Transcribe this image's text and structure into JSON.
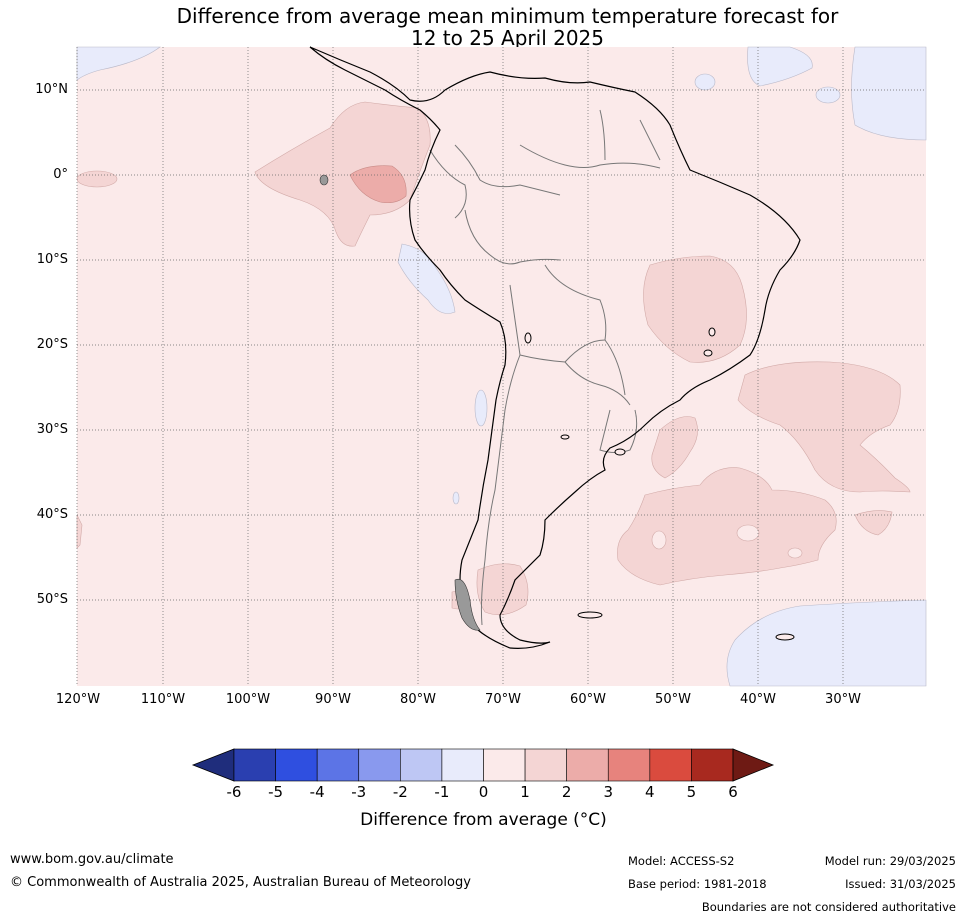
{
  "title": {
    "line1": "Difference from average mean minimum temperature forecast for",
    "line2": "12 to 25 April 2025"
  },
  "lat_labels": [
    "10°N",
    "0°",
    "10°S",
    "20°S",
    "30°S",
    "40°S",
    "50°S"
  ],
  "lon_labels": [
    "120°W",
    "110°W",
    "100°W",
    "90°W",
    "80°W",
    "70°W",
    "60°W",
    "50°W",
    "40°W",
    "30°W"
  ],
  "colorbar": {
    "labels": [
      "-6",
      "-5",
      "-4",
      "-3",
      "-2",
      "-1",
      "0",
      "1",
      "2",
      "3",
      "4",
      "5",
      "6"
    ],
    "colors": [
      "#1f2d7c",
      "#2a3fb0",
      "#2f4fe0",
      "#5c74e6",
      "#8999ee",
      "#bec7f4",
      "#e8ebfb",
      "#fbeaea",
      "#f4d5d4",
      "#ecaca9",
      "#e7837d",
      "#da4b3e",
      "#a8291f",
      "#6e1a14"
    ],
    "title": "Difference from average (°C)"
  },
  "footer": {
    "website": "www.bom.gov.au/climate",
    "copyright": "© Commonwealth of Australia 2025, Australian Bureau of Meteorology",
    "model": "Model: ACCESS-S2",
    "base_period": "Base period: 1981-2018",
    "model_run": "Model run: 29/03/2025",
    "issued": "Issued: 31/03/2025",
    "disclaimer": "Boundaries are not considered authoritative"
  }
}
